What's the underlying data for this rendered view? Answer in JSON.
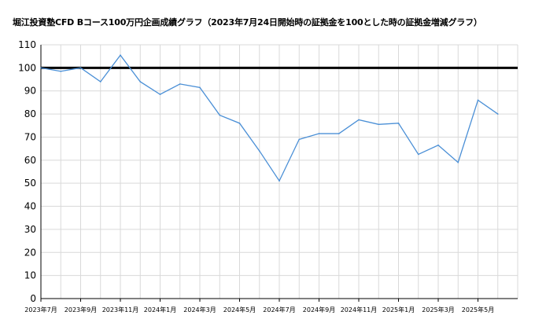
{
  "chart_data": {
    "type": "line",
    "title": "堀江投資塾CFD Bコース100万円企画成績グラフ（2023年7月24日開始時の証拠金を100とした時の証拠金増減グラフ）",
    "xlabel": "",
    "ylabel": "",
    "ylim": [
      0,
      110
    ],
    "yticks": [
      0,
      10,
      20,
      30,
      40,
      50,
      60,
      70,
      80,
      90,
      100,
      110
    ],
    "x_tick_labels": [
      "2023年7月",
      "2023年9月",
      "2023年11月",
      "2024年1月",
      "2024年3月",
      "2024年5月",
      "2024年7月",
      "2024年9月",
      "2024年11月",
      "2025年1月",
      "2025年3月",
      "2025年5月"
    ],
    "grid": true,
    "legend": "none",
    "reference_line": {
      "value": 100,
      "color": "#000000"
    },
    "series": [
      {
        "color": "#4a8fd6",
        "x": [
          "2023-07",
          "2023-08",
          "2023-09",
          "2023-10",
          "2023-11",
          "2023-12",
          "2024-01",
          "2024-02",
          "2024-03",
          "2024-04",
          "2024-05",
          "2024-06",
          "2024-07",
          "2024-08",
          "2024-09",
          "2024-10",
          "2024-11",
          "2024-12",
          "2025-01",
          "2025-02",
          "2025-03",
          "2025-04",
          "2025-05",
          "2025-06"
        ],
        "values": [
          100,
          98.5,
          100,
          94,
          105.5,
          94,
          88.5,
          93,
          91.5,
          79.5,
          76,
          64,
          51,
          69,
          71.5,
          71.5,
          77.5,
          75.5,
          76,
          62.5,
          66.5,
          59,
          86,
          80
        ]
      }
    ]
  }
}
